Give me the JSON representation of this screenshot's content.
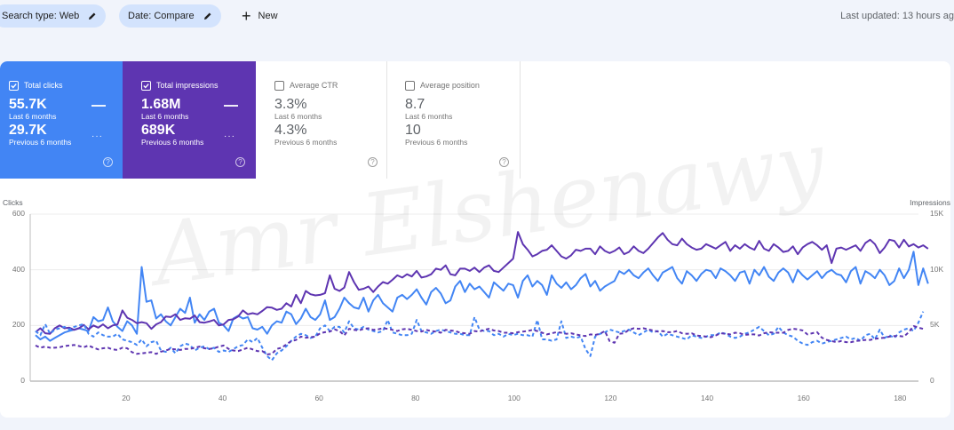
{
  "toolbar": {
    "filters": [
      {
        "label": "Search type: Web",
        "icon": "pencil-icon"
      },
      {
        "label": "Date: Compare",
        "icon": "pencil-icon"
      }
    ],
    "new_label": "New",
    "new_icon": "+",
    "last_updated": "Last updated: 13 hours ag"
  },
  "cards": [
    {
      "title": "Total clicks",
      "checked": true,
      "current": "55.7K",
      "current_label": "Last 6 months",
      "previous": "29.7K",
      "previous_label": "Previous 6 months",
      "bg": "#4285f4"
    },
    {
      "title": "Total impressions",
      "checked": true,
      "current": "1.68M",
      "current_label": "Last 6 months",
      "previous": "689K",
      "previous_label": "Previous 6 months",
      "bg": "#5e35b1"
    },
    {
      "title": "Average CTR",
      "checked": false,
      "current": "3.3%",
      "current_label": "Last 6 months",
      "previous": "4.3%",
      "previous_label": "Previous 6 months"
    },
    {
      "title": "Average position",
      "checked": false,
      "current": "8.7",
      "current_label": "Last 6 months",
      "previous": "10",
      "previous_label": "Previous 6 months"
    }
  ],
  "watermark": "Amr Elshenawy",
  "chart_data": {
    "type": "line",
    "title": "",
    "xlabel": "",
    "ylabel_left": "Clicks",
    "ylabel_right": "Impressions",
    "ylim_left": [
      0,
      600
    ],
    "ylim_right": [
      0,
      15000
    ],
    "yticks_left": [
      "0",
      "200",
      "400",
      "600"
    ],
    "yticks_right": [
      "0",
      "5K",
      "10K",
      "15K"
    ],
    "xticks": [
      "20",
      "40",
      "60",
      "80",
      "100",
      "120",
      "140",
      "160",
      "180"
    ],
    "xlim": [
      1,
      185
    ],
    "grid": true,
    "colors": {
      "clicks": "#4285f4",
      "impressions": "#5e35b1"
    },
    "series": [
      {
        "name": "Clicks (Last 6 months)",
        "axis": "left",
        "style": "solid",
        "color": "#4285f4",
        "values": [
          165,
          150,
          160,
          145,
          155,
          165,
          175,
          180,
          185,
          190,
          185,
          180,
          230,
          215,
          220,
          265,
          215,
          195,
          180,
          215,
          200,
          170,
          410,
          285,
          290,
          225,
          240,
          215,
          200,
          230,
          260,
          245,
          300,
          210,
          240,
          220,
          250,
          260,
          210,
          200,
          180,
          225,
          235,
          225,
          230,
          190,
          185,
          195,
          170,
          200,
          215,
          210,
          250,
          240,
          205,
          225,
          260,
          230,
          220,
          240,
          290,
          220,
          230,
          260,
          300,
          280,
          265,
          260,
          300,
          250,
          290,
          310,
          280,
          265,
          250,
          300,
          310,
          295,
          310,
          330,
          300,
          275,
          320,
          335,
          315,
          280,
          290,
          340,
          360,
          320,
          350,
          330,
          340,
          320,
          300,
          355,
          340,
          325,
          350,
          345,
          300,
          360,
          380,
          340,
          360,
          345,
          310,
          380,
          350,
          335,
          355,
          330,
          345,
          370,
          385,
          340,
          360,
          325,
          340,
          350,
          360,
          395,
          385,
          400,
          380,
          370,
          390,
          405,
          380,
          360,
          390,
          400,
          410,
          370,
          350,
          395,
          380,
          360,
          385,
          400,
          395,
          370,
          405,
          395,
          380,
          360,
          390,
          395,
          350,
          400,
          380,
          410,
          375,
          360,
          390,
          405,
          390,
          355,
          400,
          380,
          365,
          380,
          395,
          370,
          390,
          400,
          385,
          380,
          355,
          395,
          410,
          350,
          395,
          385,
          370,
          400,
          380,
          345,
          360,
          405,
          370,
          400,
          465,
          345,
          405,
          350
        ]
      },
      {
        "name": "Impressions (Last 6 months)",
        "axis": "right",
        "style": "solid",
        "color": "#5e35b1",
        "values": [
          4400,
          4750,
          4300,
          4250,
          4750,
          5000,
          4750,
          4800,
          4600,
          4750,
          5050,
          4650,
          5000,
          4800,
          5100,
          4750,
          5000,
          5100,
          6350,
          5700,
          5500,
          5200,
          5300,
          5200,
          4700,
          5100,
          5300,
          5800,
          5750,
          6000,
          5500,
          5650,
          5600,
          5900,
          5300,
          5250,
          5350,
          5500,
          5000,
          5100,
          5500,
          5550,
          5800,
          6350,
          6000,
          6100,
          6000,
          6300,
          6650,
          6600,
          6400,
          6500,
          7000,
          6700,
          7750,
          7000,
          8100,
          7800,
          7700,
          7750,
          7900,
          9500,
          8300,
          8100,
          8400,
          9800,
          8900,
          8200,
          8300,
          8500,
          8000,
          8500,
          8900,
          8750,
          9100,
          9500,
          9300,
          9600,
          9400,
          9900,
          9300,
          9400,
          9600,
          10100,
          10000,
          10400,
          9600,
          9500,
          10100,
          10100,
          9900,
          10200,
          9800,
          10200,
          10400,
          9900,
          9800,
          10200,
          10600,
          11000,
          13400,
          12300,
          11800,
          11200,
          11400,
          11700,
          11800,
          12200,
          11700,
          11200,
          11000,
          11300,
          11800,
          11700,
          11900,
          11900,
          11400,
          12100,
          11700,
          11500,
          11700,
          12000,
          11400,
          11600,
          12100,
          11700,
          11500,
          11900,
          12400,
          12900,
          13300,
          12700,
          12300,
          12200,
          12800,
          12300,
          12000,
          11800,
          11900,
          12300,
          12100,
          11900,
          12200,
          12500,
          11700,
          12200,
          11900,
          12300,
          12000,
          11800,
          12600,
          11900,
          11700,
          12300,
          12000,
          11600,
          11700,
          12100,
          11400,
          12000,
          12300,
          12500,
          12200,
          11800,
          12200,
          10600,
          11900,
          12000,
          11800,
          12000,
          12200,
          11700,
          12400,
          12700,
          12300,
          11500,
          12000,
          12700,
          12600,
          12000,
          12700,
          12100,
          12300,
          12000,
          12200,
          11900
        ]
      },
      {
        "name": "Clicks (Previous 6 months)",
        "axis": "left",
        "style": "dashed",
        "color": "#4285f4",
        "values": [
          180,
          165,
          205,
          170,
          185,
          190,
          195,
          185,
          195,
          200,
          205,
          170,
          160,
          175,
          165,
          160,
          160,
          170,
          150,
          145,
          140,
          130,
          150,
          125,
          140,
          145,
          110,
          105,
          120,
          100,
          125,
          135,
          130,
          110,
          120,
          125,
          115,
          120,
          105,
          110,
          105,
          115,
          125,
          130,
          150,
          140,
          155,
          120,
          90,
          75,
          100,
          110,
          125,
          145,
          160,
          170,
          165,
          155,
          160,
          190,
          200,
          180,
          195,
          195,
          175,
          215,
          190,
          185,
          195,
          185,
          180,
          175,
          180,
          220,
          175,
          170,
          165,
          165,
          170,
          220,
          180,
          175,
          170,
          180,
          185,
          180,
          175,
          170,
          170,
          165,
          165,
          230,
          185,
          180,
          180,
          165,
          170,
          160,
          170,
          165,
          170,
          165,
          165,
          160,
          220,
          150,
          150,
          145,
          150,
          215,
          155,
          160,
          155,
          160,
          115,
          90,
          160,
          170,
          175,
          185,
          180,
          175,
          180,
          185,
          175,
          165,
          175,
          185,
          175,
          180,
          160,
          170,
          165,
          160,
          155,
          150,
          165,
          160,
          155,
          160,
          165,
          165,
          175,
          170,
          160,
          155,
          160,
          170,
          175,
          185,
          195,
          180,
          165,
          170,
          195,
          175,
          165,
          160,
          145,
          135,
          130,
          140,
          145,
          135,
          140,
          145,
          150,
          155,
          160,
          150,
          155,
          145,
          165,
          170,
          150,
          185,
          155,
          165,
          155,
          175,
          185,
          190,
          180,
          210,
          250
        ]
      },
      {
        "name": "Impressions (Previous 6 months)",
        "axis": "right",
        "style": "dashed",
        "color": "#5e35b1",
        "values": [
          3200,
          3000,
          3100,
          3000,
          3000,
          3050,
          3150,
          3200,
          3250,
          3150,
          3050,
          3200,
          3000,
          2850,
          2950,
          3000,
          2850,
          2800,
          3000,
          2950,
          2600,
          2450,
          2500,
          2550,
          2600,
          2450,
          2650,
          2750,
          2900,
          2850,
          2800,
          2900,
          2900,
          3000,
          3100,
          2950,
          2900,
          2950,
          3100,
          3200,
          2900,
          2750,
          2700,
          2850,
          3000,
          2850,
          2700,
          2700,
          2400,
          2450,
          2900,
          3000,
          3300,
          3600,
          3700,
          4000,
          3900,
          3950,
          4000,
          4300,
          4400,
          4450,
          4650,
          4500,
          4100,
          4700,
          4600,
          4550,
          4700,
          4750,
          4600,
          4650,
          4750,
          4700,
          4600,
          4500,
          4650,
          4700,
          4600,
          4500,
          4450,
          4600,
          4500,
          4450,
          4350,
          4600,
          4550,
          4500,
          4350,
          4300,
          4250,
          4500,
          4450,
          4600,
          4700,
          4550,
          4500,
          4350,
          4350,
          4300,
          4400,
          4450,
          4500,
          4600,
          4500,
          4350,
          4200,
          4300,
          4400,
          4350,
          4250,
          4300,
          4200,
          4100,
          4050,
          4200,
          4150,
          4250,
          4500,
          3600,
          3450,
          4250,
          4300,
          4600,
          4750,
          4700,
          4750,
          4650,
          4550,
          4450,
          4500,
          4400,
          4400,
          4500,
          4300,
          4250,
          4300,
          4100,
          4050,
          4000,
          3950,
          4100,
          4300,
          4250,
          4200,
          4350,
          4300,
          4150,
          4200,
          4200,
          4100,
          4300,
          4400,
          4350,
          4350,
          4350,
          4600,
          4700,
          4650,
          4550,
          4200,
          4300,
          4400,
          3900,
          3700,
          3600,
          3500,
          3600,
          3500,
          3500,
          3600,
          3650,
          3700,
          3700,
          3800,
          3850,
          3900,
          4000,
          4050,
          4050,
          4000,
          4400,
          4950,
          4800,
          4700
        ]
      }
    ]
  }
}
